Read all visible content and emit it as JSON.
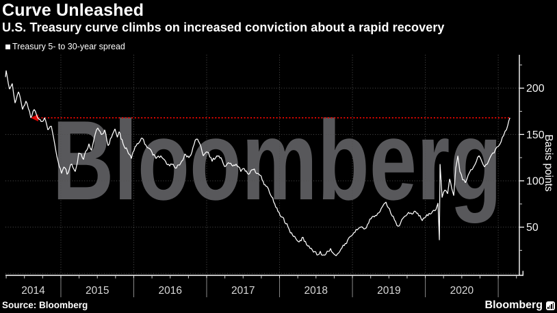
{
  "header": {
    "title": "Curve Unleashed",
    "subtitle": "U.S. Treasury curve climbs on increased conviction about a rapid recovery"
  },
  "legend": {
    "label": "Treasury 5- to 30-year spread"
  },
  "footer": {
    "source": "Source: Bloomberg",
    "brand": "Bloomberg"
  },
  "icons": {
    "legend_marker": "square-bullet-icon",
    "brand_icon": "bar-chart-icon"
  },
  "colors": {
    "background": "#000000",
    "text": "#ffffff",
    "series_line": "#ffffff",
    "reference_line": "#de0500",
    "watermark": "#58585b",
    "grid": "#525252",
    "axis": "#ffffff",
    "tick_label": "#f5f5f5",
    "year_label": "#d8d8d8",
    "separator": "#8a8a8a"
  },
  "chart_data": {
    "type": "line",
    "title": "Curve Unleashed",
    "subtitle": "U.S. Treasury curve climbs on increased conviction about a rapid recovery",
    "legend": [
      "Treasury 5- to 30-year spread"
    ],
    "legend_position": "top-left",
    "xlabel": "",
    "ylabel": "Basis points",
    "x_unit": "year (decimal)",
    "y_unit": "basis points",
    "xlim": [
      2014.24,
      2021.29
    ],
    "ylim": [
      -2,
      236
    ],
    "yticks": [
      50,
      100,
      150,
      200
    ],
    "yticks_minor": [
      25,
      75,
      125,
      175,
      225
    ],
    "xticks": [
      2014,
      2015,
      2016,
      2017,
      2018,
      2019,
      2020
    ],
    "grid": "dotted",
    "watermark": "Bloomberg",
    "reference_line": {
      "style": "dotted",
      "value": 168,
      "x_start": 2014.67,
      "x_end": 2021.16
    },
    "series": [
      {
        "name": "Treasury 5- to 30-year spread",
        "color": "#ffffff",
        "points": [
          [
            2014.24,
            212
          ],
          [
            2014.249,
            219
          ],
          [
            2014.296,
            199
          ],
          [
            2014.333,
            205
          ],
          [
            2014.371,
            184
          ],
          [
            2014.418,
            196
          ],
          [
            2014.474,
            177
          ],
          [
            2014.521,
            186
          ],
          [
            2014.587,
            168
          ],
          [
            2014.634,
            177
          ],
          [
            2014.671,
            170
          ],
          [
            2014.728,
            164
          ],
          [
            2014.775,
            168
          ],
          [
            2014.822,
            155
          ],
          [
            2014.869,
            159
          ],
          [
            2014.915,
            140
          ],
          [
            2014.962,
            121
          ],
          [
            2015.009,
            108
          ],
          [
            2015.056,
            114
          ],
          [
            2015.085,
            107
          ],
          [
            2015.15,
            118
          ],
          [
            2015.197,
            110
          ],
          [
            2015.244,
            130
          ],
          [
            2015.31,
            123
          ],
          [
            2015.385,
            140
          ],
          [
            2015.42,
            133
          ],
          [
            2015.47,
            150
          ],
          [
            2015.507,
            157
          ],
          [
            2015.554,
            150
          ],
          [
            2015.601,
            155
          ],
          [
            2015.648,
            138
          ],
          [
            2015.695,
            147
          ],
          [
            2015.742,
            156
          ],
          [
            2015.775,
            147
          ],
          [
            2015.798,
            153
          ],
          [
            2015.854,
            140
          ],
          [
            2015.911,
            133
          ],
          [
            2015.967,
            124
          ],
          [
            2016.005,
            133
          ],
          [
            2016.061,
            140
          ],
          [
            2016.117,
            146
          ],
          [
            2016.183,
            136
          ],
          [
            2016.249,
            131
          ],
          [
            2016.305,
            124
          ],
          [
            2016.371,
            127
          ],
          [
            2016.437,
            121
          ],
          [
            2016.493,
            116
          ],
          [
            2016.54,
            118
          ],
          [
            2016.587,
            114
          ],
          [
            2016.643,
            119
          ],
          [
            2016.7,
            129
          ],
          [
            2016.756,
            125
          ],
          [
            2016.812,
            136
          ],
          [
            2016.859,
            145
          ],
          [
            2016.906,
            140
          ],
          [
            2016.953,
            127
          ],
          [
            2017.009,
            131
          ],
          [
            2017.075,
            121
          ],
          [
            2017.141,
            127
          ],
          [
            2017.197,
            125
          ],
          [
            2017.263,
            116
          ],
          [
            2017.329,
            119
          ],
          [
            2017.404,
            118
          ],
          [
            2017.469,
            110
          ],
          [
            2017.516,
            113
          ],
          [
            2017.573,
            107
          ],
          [
            2017.638,
            112
          ],
          [
            2017.704,
            108
          ],
          [
            2017.761,
            101
          ],
          [
            2017.817,
            94
          ],
          [
            2017.864,
            87
          ],
          [
            2017.92,
            77
          ],
          [
            2017.977,
            67
          ],
          [
            2018.024,
            61
          ],
          [
            2018.071,
            55
          ],
          [
            2018.117,
            50
          ],
          [
            2018.164,
            44
          ],
          [
            2018.221,
            38
          ],
          [
            2018.268,
            34
          ],
          [
            2018.324,
            39
          ],
          [
            2018.371,
            31
          ],
          [
            2018.418,
            27
          ],
          [
            2018.465,
            23
          ],
          [
            2018.512,
            20
          ],
          [
            2018.559,
            24
          ],
          [
            2018.606,
            20
          ],
          [
            2018.653,
            24
          ],
          [
            2018.7,
            27
          ],
          [
            2018.746,
            21
          ],
          [
            2018.793,
            21
          ],
          [
            2018.84,
            26
          ],
          [
            2018.887,
            30
          ],
          [
            2018.934,
            36
          ],
          [
            2018.972,
            40
          ],
          [
            2019.019,
            44
          ],
          [
            2019.066,
            47
          ],
          [
            2019.113,
            50
          ],
          [
            2019.16,
            48
          ],
          [
            2019.207,
            53
          ],
          [
            2019.254,
            59
          ],
          [
            2019.3,
            61
          ],
          [
            2019.347,
            65
          ],
          [
            2019.394,
            70
          ],
          [
            2019.432,
            75
          ],
          [
            2019.46,
            77
          ],
          [
            2019.507,
            70
          ],
          [
            2019.545,
            62
          ],
          [
            2019.592,
            56
          ],
          [
            2019.629,
            51
          ],
          [
            2019.676,
            58
          ],
          [
            2019.723,
            62
          ],
          [
            2019.77,
            66
          ],
          [
            2019.817,
            64
          ],
          [
            2019.864,
            67
          ],
          [
            2019.911,
            62
          ],
          [
            2019.958,
            57
          ],
          [
            2020.005,
            61
          ],
          [
            2020.052,
            65
          ],
          [
            2020.099,
            67
          ],
          [
            2020.146,
            69
          ],
          [
            2020.174,
            76
          ],
          [
            2020.193,
            36
          ],
          [
            2020.202,
            118
          ],
          [
            2020.23,
            82
          ],
          [
            2020.268,
            90
          ],
          [
            2020.305,
            86
          ],
          [
            2020.333,
            102
          ],
          [
            2020.362,
            92
          ],
          [
            2020.39,
            84
          ],
          [
            2020.418,
            114
          ],
          [
            2020.446,
            127
          ],
          [
            2020.474,
            110
          ],
          [
            2020.512,
            101
          ],
          [
            2020.549,
            98
          ],
          [
            2020.587,
            106
          ],
          [
            2020.624,
            112
          ],
          [
            2020.662,
            115
          ],
          [
            2020.7,
            121
          ],
          [
            2020.737,
            127
          ],
          [
            2020.775,
            121
          ],
          [
            2020.812,
            115
          ],
          [
            2020.85,
            118
          ],
          [
            2020.887,
            125
          ],
          [
            2020.925,
            130
          ],
          [
            2020.962,
            134
          ],
          [
            2021.0,
            137
          ],
          [
            2021.038,
            142
          ],
          [
            2021.075,
            149
          ],
          [
            2021.113,
            155
          ],
          [
            2021.131,
            160
          ],
          [
            2021.16,
            168
          ]
        ]
      }
    ]
  }
}
